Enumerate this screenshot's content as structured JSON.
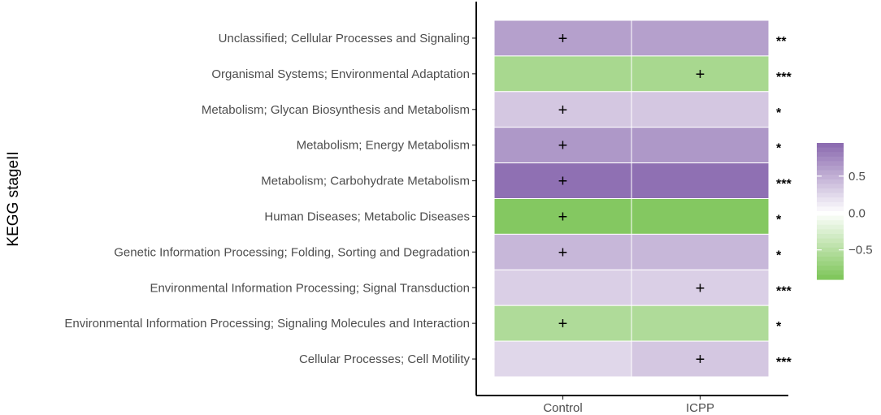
{
  "chart_data": {
    "type": "heatmap",
    "ylabel": "KEGG stageII",
    "xlabel": "",
    "columns": [
      "Control",
      "ICPP"
    ],
    "rows": [
      {
        "label": "Unclassified; Cellular Processes and Signaling",
        "values": [
          0.6,
          0.6
        ],
        "plus": [
          true,
          false
        ],
        "sig": "**"
      },
      {
        "label": "Organismal Systems; Environmental Adaptation",
        "values": [
          -0.6,
          -0.6
        ],
        "plus": [
          false,
          true
        ],
        "sig": "***"
      },
      {
        "label": "Metabolism; Glycan Biosynthesis and Metabolism",
        "values": [
          0.35,
          0.35
        ],
        "plus": [
          true,
          false
        ],
        "sig": "*"
      },
      {
        "label": "Metabolism; Energy Metabolism",
        "values": [
          0.65,
          0.65
        ],
        "plus": [
          true,
          false
        ],
        "sig": "*"
      },
      {
        "label": "Metabolism; Carbohydrate Metabolism",
        "values": [
          0.9,
          0.9
        ],
        "plus": [
          true,
          false
        ],
        "sig": "***"
      },
      {
        "label": "Human Diseases; Metabolic Diseases",
        "values": [
          -0.85,
          -0.85
        ],
        "plus": [
          true,
          false
        ],
        "sig": "*"
      },
      {
        "label": "Genetic Information Processing; Folding, Sorting and Degradation",
        "values": [
          0.45,
          0.45
        ],
        "plus": [
          true,
          false
        ],
        "sig": "*"
      },
      {
        "label": "Environmental Information Processing; Signal Transduction",
        "values": [
          0.3,
          0.3
        ],
        "plus": [
          false,
          true
        ],
        "sig": "***"
      },
      {
        "label": "Environmental Information Processing; Signaling Molecules and Interaction",
        "values": [
          -0.55,
          -0.55
        ],
        "plus": [
          true,
          false
        ],
        "sig": "*"
      },
      {
        "label": "Cellular Processes; Cell Motility",
        "values": [
          0.25,
          0.35
        ],
        "plus": [
          false,
          true
        ],
        "sig": "***"
      }
    ],
    "plus_symbol": "+",
    "legend": {
      "ticks": [
        0.5,
        0.0,
        -0.5
      ],
      "tick_labels": [
        "0.5",
        "0.0",
        "−0.5"
      ],
      "range": [
        -0.9,
        0.95
      ],
      "position": "right"
    },
    "colors": {
      "high": "#8360aa",
      "mid": "#ffffff",
      "low": "#6ebe45"
    }
  }
}
